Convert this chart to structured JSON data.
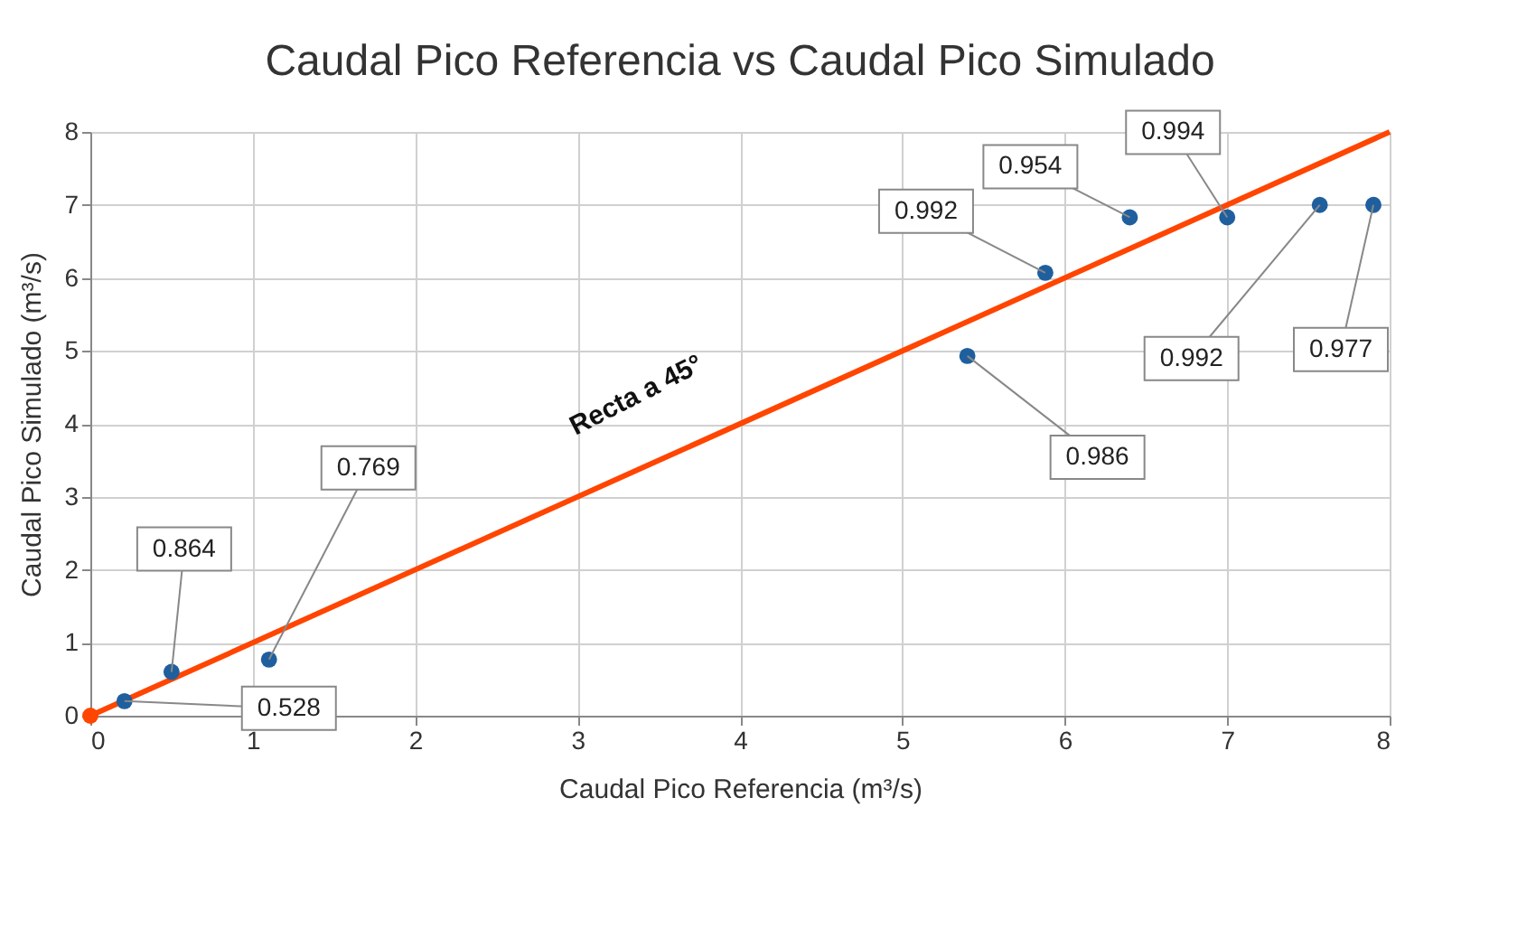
{
  "chart_data": {
    "type": "scatter",
    "title": "Caudal Pico Referencia vs Caudal Pico Simulado",
    "xlabel": "Caudal Pico Referencia (m³/s)",
    "ylabel": "Caudal Pico Simulado (m³/s)",
    "series": [
      {
        "type": "line",
        "color": "#ff4500",
        "marker": "none",
        "x": [
          0,
          8
        ],
        "values": [
          0,
          8
        ]
      },
      {
        "color": "#ff4500",
        "x": [
          0
        ],
        "values": [
          0
        ]
      },
      {
        "color": "#1f5f9e",
        "x": [
          0.21,
          0.5,
          1.1,
          5.4,
          5.88,
          6.4,
          7.0,
          7.57,
          7.9
        ],
        "values": [
          0.2,
          0.6,
          0.77,
          4.93,
          6.07,
          6.83,
          6.83,
          7.0,
          7.0
        ]
      }
    ],
    "annotations": [
      {
        "text": "0.528",
        "x": 0.21,
        "y": 0.2
      },
      {
        "text": "0.864",
        "x": 0.5,
        "y": 0.6
      },
      {
        "text": "0.769",
        "x": 1.1,
        "y": 0.77
      },
      {
        "text": "0.986",
        "x": 5.4,
        "y": 4.93
      },
      {
        "text": "0.992",
        "x": 5.88,
        "y": 6.07
      },
      {
        "text": "0.954",
        "x": 6.4,
        "y": 6.83
      },
      {
        "text": "0.994",
        "x": 7.0,
        "y": 6.83
      },
      {
        "text": "0.992",
        "x": 7.57,
        "y": 7.0
      },
      {
        "text": "0.977",
        "x": 7.9,
        "y": 7.0
      },
      "Recta a 45°"
    ],
    "xlim": [
      0,
      8
    ],
    "ylim": [
      0,
      8
    ],
    "xticks": [
      0,
      1,
      2,
      3,
      4,
      5,
      6,
      7,
      8
    ],
    "yticks": [
      0,
      1,
      2,
      3,
      4,
      5,
      6,
      7,
      8
    ],
    "grid": true,
    "marker": "circle"
  }
}
